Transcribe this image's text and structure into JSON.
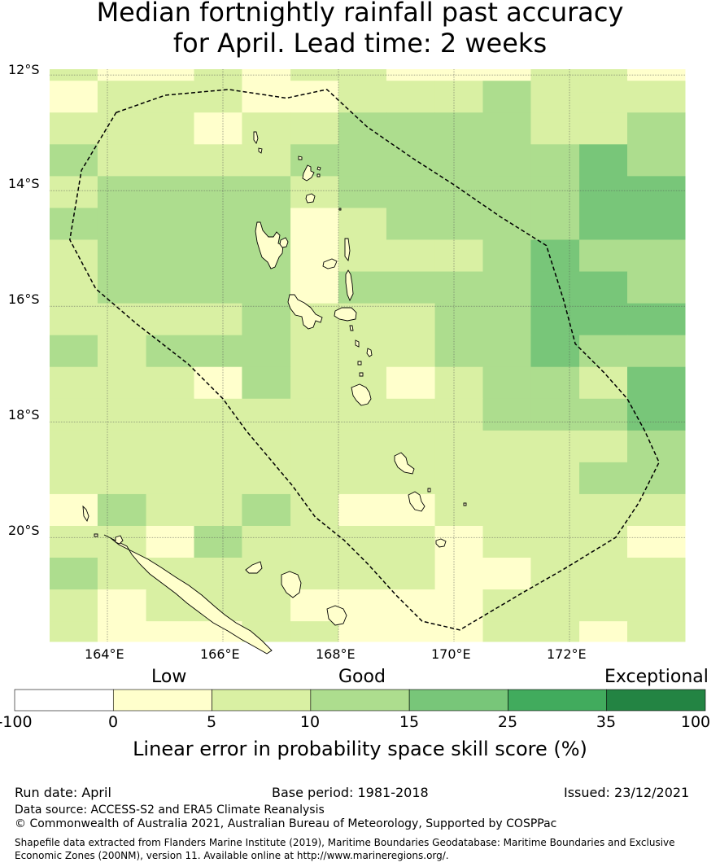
{
  "title_line1": "Median fortnightly rainfall past accuracy",
  "title_line2": "for April. Lead time: 2 weeks",
  "lat_labels": [
    "12°S",
    "14°S",
    "16°S",
    "18°S",
    "20°S"
  ],
  "lon_labels": [
    "164°E",
    "166°E",
    "168°E",
    "170°E",
    "172°E"
  ],
  "map_bounds": {
    "lon_min": 163.0,
    "lon_max": 174.0,
    "lat_top": -11.9,
    "lat_bottom": -21.8
  },
  "grid_lons": [
    163.0,
    163.83,
    164.67,
    165.5,
    166.33,
    167.17,
    168.0,
    168.83,
    169.67,
    170.5,
    171.33,
    172.17,
    173.0,
    174.0
  ],
  "grid_lats": [
    -11.9,
    -12.1,
    -12.65,
    -13.2,
    -13.75,
    -14.3,
    -14.85,
    -15.4,
    -15.95,
    -16.5,
    -17.05,
    -17.6,
    -18.15,
    -18.7,
    -19.25,
    -19.8,
    -20.35,
    -20.9,
    -21.45,
    -21.8
  ],
  "skill_grid": [
    [
      2,
      1,
      1,
      2,
      1,
      2,
      2,
      1,
      1,
      1,
      2,
      2,
      1
    ],
    [
      1,
      2,
      2,
      2,
      1,
      1,
      2,
      2,
      2,
      3,
      2,
      2,
      2
    ],
    [
      2,
      2,
      2,
      1,
      2,
      2,
      3,
      3,
      3,
      3,
      2,
      2,
      3
    ],
    [
      3,
      2,
      2,
      2,
      2,
      3,
      3,
      3,
      3,
      3,
      3,
      4,
      3
    ],
    [
      2,
      3,
      3,
      3,
      3,
      2,
      3,
      3,
      3,
      3,
      3,
      4,
      4
    ],
    [
      3,
      3,
      3,
      3,
      3,
      1,
      2,
      3,
      3,
      3,
      3,
      4,
      4
    ],
    [
      2,
      3,
      3,
      3,
      3,
      1,
      2,
      2,
      2,
      3,
      4,
      3,
      3
    ],
    [
      2,
      3,
      3,
      3,
      3,
      1,
      3,
      3,
      3,
      3,
      4,
      4,
      3
    ],
    [
      2,
      2,
      2,
      2,
      3,
      2,
      2,
      2,
      3,
      3,
      4,
      4,
      4
    ],
    [
      3,
      2,
      3,
      3,
      3,
      2,
      2,
      2,
      3,
      3,
      4,
      3,
      3
    ],
    [
      2,
      2,
      2,
      1,
      3,
      2,
      2,
      1,
      2,
      3,
      3,
      2,
      4
    ],
    [
      2,
      2,
      2,
      2,
      2,
      2,
      2,
      2,
      2,
      3,
      3,
      3,
      4
    ],
    [
      2,
      2,
      2,
      2,
      2,
      2,
      2,
      2,
      2,
      2,
      2,
      2,
      3
    ],
    [
      2,
      2,
      2,
      2,
      2,
      2,
      2,
      2,
      2,
      2,
      2,
      3,
      3
    ],
    [
      1,
      3,
      2,
      2,
      3,
      2,
      1,
      1,
      2,
      2,
      2,
      2,
      2
    ],
    [
      2,
      2,
      1,
      3,
      2,
      2,
      2,
      2,
      1,
      2,
      2,
      2,
      1
    ],
    [
      3,
      2,
      2,
      2,
      2,
      2,
      2,
      2,
      1,
      1,
      2,
      2,
      2
    ],
    [
      2,
      1,
      2,
      2,
      2,
      1,
      1,
      1,
      1,
      2,
      2,
      2,
      2
    ],
    [
      2,
      1,
      1,
      1,
      2,
      2,
      1,
      1,
      1,
      2,
      2,
      1,
      2
    ]
  ],
  "eez_boundary": [
    [
      164.15,
      -12.65
    ],
    [
      165.0,
      -12.35
    ],
    [
      166.1,
      -12.25
    ],
    [
      167.1,
      -12.4
    ],
    [
      167.8,
      -12.25
    ],
    [
      168.5,
      -12.9
    ],
    [
      169.3,
      -13.45
    ],
    [
      170.0,
      -13.9
    ],
    [
      170.8,
      -14.45
    ],
    [
      171.6,
      -14.95
    ],
    [
      171.9,
      -15.9
    ],
    [
      172.1,
      -16.65
    ],
    [
      172.6,
      -17.15
    ],
    [
      173.0,
      -17.6
    ],
    [
      173.3,
      -18.15
    ],
    [
      173.55,
      -18.7
    ],
    [
      173.2,
      -19.4
    ],
    [
      172.8,
      -20.0
    ],
    [
      171.9,
      -20.55
    ],
    [
      171.2,
      -20.95
    ],
    [
      170.1,
      -21.6
    ],
    [
      169.45,
      -21.45
    ],
    [
      169.0,
      -21.0
    ],
    [
      168.5,
      -20.45
    ],
    [
      168.1,
      -20.05
    ],
    [
      167.6,
      -19.65
    ],
    [
      167.2,
      -19.1
    ],
    [
      166.4,
      -18.15
    ],
    [
      166.0,
      -17.6
    ],
    [
      165.4,
      -17.0
    ],
    [
      164.5,
      -16.3
    ],
    [
      163.8,
      -15.7
    ],
    [
      163.35,
      -14.85
    ],
    [
      163.55,
      -13.65
    ],
    [
      164.15,
      -12.65
    ]
  ],
  "colorbar": {
    "colors": [
      "#ffffff",
      "#ffffcc",
      "#d9f0a3",
      "#addd8e",
      "#78c679",
      "#41ab5d",
      "#238443"
    ],
    "tick_labels": [
      "-100",
      "0",
      "5",
      "10",
      "15",
      "25",
      "35",
      "100"
    ],
    "category_labels": [
      "Low",
      "Good",
      "Exceptional"
    ],
    "label": "Linear error in probability space skill score (%)"
  },
  "footer": {
    "run_date": "Run date: April",
    "base_period": "Base period: 1981-2018",
    "issued": "Issued: 23/12/2021",
    "data_source": "Data source: ACCESS-S2 and ERA5 Climate Reanalysis",
    "copyright": "© Commonwealth of Australia 2021, Australian Bureau of Meteorology, Supported by COSPPac",
    "shapefile_line1": "Shapefile data extracted from Flanders Marine Institute (2019), Maritime Boundaries Geodatabase: Maritime Boundaries and Exclusive",
    "shapefile_line2": "Economic Zones (200NM), version 11. Available online at http://www.marineregions.org/."
  }
}
